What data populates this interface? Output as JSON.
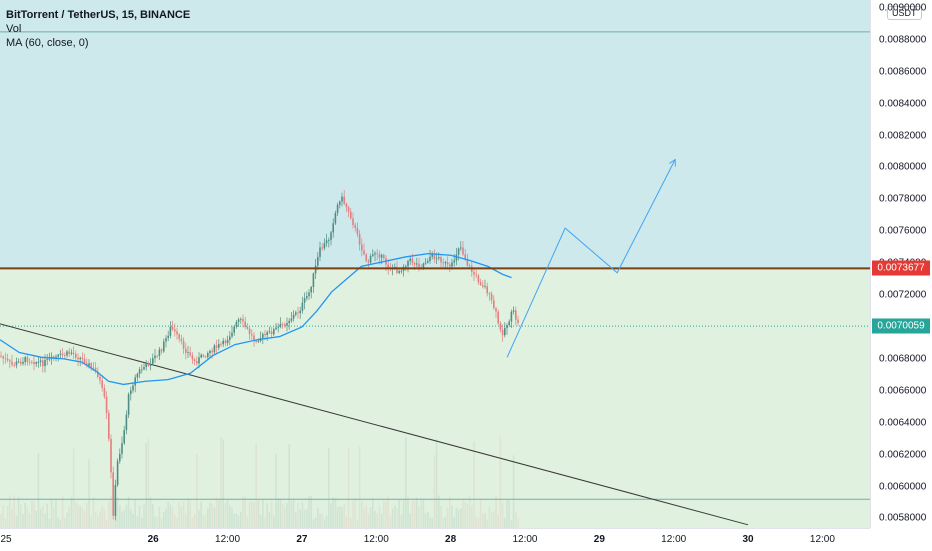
{
  "legend": {
    "title": "BitTorrent / TetherUS, 15, BINANCE",
    "vol": "Vol",
    "ma": "MA (60, close, 0)"
  },
  "currency_label": "USDT",
  "colors": {
    "zone_upper": "#cde9ec",
    "zone_lower": "#e1f1df",
    "up_candle": "#4f8c84",
    "down_candle": "#e27f7f",
    "ma_line": "#2196f3",
    "projection": "#42a5f5",
    "resistance": "#7b3f12",
    "trendline": "#3a3a3a",
    "level_line": "#6fb0a8",
    "current_price": "#26a69a",
    "resistance_box": "#e53935"
  },
  "price_boxes": {
    "resistance": "0.0073677",
    "current": "0.0070059"
  },
  "chart_data": {
    "type": "line",
    "title": "BitTorrent / TetherUS, 15, BINANCE",
    "y_tick_labels": [
      "0.0090000",
      "0.0088000",
      "0.0086000",
      "0.0084000",
      "0.0082000",
      "0.0080000",
      "0.0078000",
      "0.0076000",
      "0.0074000",
      "0.0072000",
      "0.0070000",
      "0.0068000",
      "0.0066000",
      "0.0064000",
      "0.0062000",
      "0.0060000",
      "0.0058000"
    ],
    "x_tick_labels": [
      "25",
      "26",
      "12:00",
      "27",
      "12:00",
      "28",
      "12:00",
      "29",
      "12:00",
      "30",
      "12:00"
    ],
    "x_ticks_bold": [
      "26",
      "27",
      "28",
      "29",
      "30"
    ],
    "ylim": [
      0.00574,
      0.00905
    ],
    "xlim": [
      24.97,
      30.82
    ],
    "levels": {
      "upper_zone_top": 0.00885,
      "resistance": 0.0073677,
      "current": 0.0070059,
      "lower_line": 0.00592
    },
    "price_path": [
      [
        24.97,
        0.00682
      ],
      [
        25.05,
        0.00676
      ],
      [
        25.15,
        0.0068
      ],
      [
        25.25,
        0.00677
      ],
      [
        25.35,
        0.00681
      ],
      [
        25.45,
        0.00684
      ],
      [
        25.55,
        0.00678
      ],
      [
        25.63,
        0.0067
      ],
      [
        25.68,
        0.00652
      ],
      [
        25.71,
        0.0062
      ],
      [
        25.73,
        0.00582
      ],
      [
        25.76,
        0.00615
      ],
      [
        25.8,
        0.00632
      ],
      [
        25.84,
        0.0066
      ],
      [
        25.9,
        0.00672
      ],
      [
        25.98,
        0.00678
      ],
      [
        26.05,
        0.00685
      ],
      [
        26.12,
        0.007
      ],
      [
        26.2,
        0.00688
      ],
      [
        26.28,
        0.00678
      ],
      [
        26.38,
        0.00685
      ],
      [
        26.48,
        0.0069
      ],
      [
        26.58,
        0.00705
      ],
      [
        26.68,
        0.00692
      ],
      [
        26.78,
        0.00696
      ],
      [
        26.88,
        0.00702
      ],
      [
        26.98,
        0.0071
      ],
      [
        27.05,
        0.00722
      ],
      [
        27.12,
        0.00748
      ],
      [
        27.18,
        0.00755
      ],
      [
        27.22,
        0.0077
      ],
      [
        27.26,
        0.00782
      ],
      [
        27.32,
        0.00772
      ],
      [
        27.38,
        0.00755
      ],
      [
        27.44,
        0.0074
      ],
      [
        27.5,
        0.00748
      ],
      [
        27.58,
        0.00738
      ],
      [
        27.65,
        0.00735
      ],
      [
        27.72,
        0.00742
      ],
      [
        27.8,
        0.00738
      ],
      [
        27.87,
        0.00745
      ],
      [
        27.94,
        0.00742
      ],
      [
        28.0,
        0.00736
      ],
      [
        28.06,
        0.00752
      ],
      [
        28.12,
        0.00738
      ],
      [
        28.18,
        0.0073
      ],
      [
        28.24,
        0.00724
      ],
      [
        28.3,
        0.0071
      ],
      [
        28.34,
        0.00695
      ],
      [
        28.38,
        0.00702
      ],
      [
        28.42,
        0.0071
      ],
      [
        28.46,
        0.007
      ]
    ],
    "ma_path": [
      [
        24.97,
        0.00692
      ],
      [
        25.1,
        0.00684
      ],
      [
        25.25,
        0.00681
      ],
      [
        25.4,
        0.0068
      ],
      [
        25.52,
        0.00678
      ],
      [
        25.62,
        0.00672
      ],
      [
        25.7,
        0.00666
      ],
      [
        25.8,
        0.00664
      ],
      [
        25.95,
        0.00666
      ],
      [
        26.1,
        0.00667
      ],
      [
        26.25,
        0.00671
      ],
      [
        26.4,
        0.00682
      ],
      [
        26.55,
        0.00689
      ],
      [
        26.7,
        0.00692
      ],
      [
        26.85,
        0.00694
      ],
      [
        27.0,
        0.007
      ],
      [
        27.1,
        0.0071
      ],
      [
        27.2,
        0.00722
      ],
      [
        27.3,
        0.0073
      ],
      [
        27.4,
        0.00738
      ],
      [
        27.55,
        0.00741
      ],
      [
        27.7,
        0.00744
      ],
      [
        27.85,
        0.00746
      ],
      [
        28.0,
        0.00745
      ],
      [
        28.12,
        0.00742
      ],
      [
        28.25,
        0.00738
      ],
      [
        28.35,
        0.00733
      ],
      [
        28.41,
        0.00731
      ]
    ],
    "projection_path": [
      [
        28.38,
        0.00681
      ],
      [
        28.77,
        0.00762
      ],
      [
        29.12,
        0.00734
      ],
      [
        29.51,
        0.00805
      ]
    ],
    "trendline": [
      [
        24.97,
        0.00702
      ],
      [
        30.0,
        0.00576
      ]
    ]
  }
}
